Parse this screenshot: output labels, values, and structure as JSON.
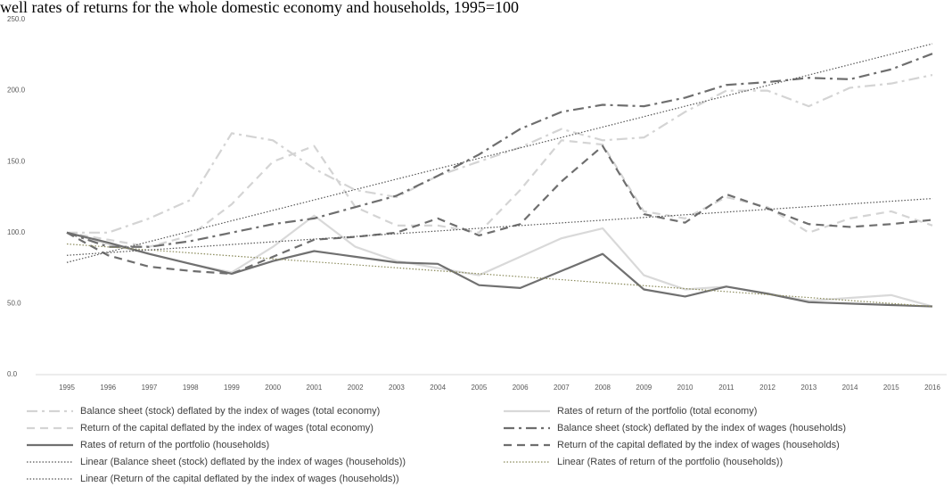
{
  "chart_data": {
    "type": "line",
    "title": "well rates of returns for the whole domestic economy and households, 1995=100",
    "categories": [
      "1995",
      "1996",
      "1997",
      "1998",
      "1999",
      "2000",
      "2001",
      "2002",
      "2003",
      "2004",
      "2005",
      "2006",
      "2007",
      "2008",
      "2009",
      "2010",
      "2011",
      "2012",
      "2013",
      "2014",
      "2015",
      "2016"
    ],
    "ylim": [
      0,
      250
    ],
    "yticks": [
      {
        "value": 0,
        "label": "0.0"
      },
      {
        "value": 50,
        "label": "50.0"
      },
      {
        "value": 100,
        "label": "100.0"
      },
      {
        "value": 150,
        "label": "150.0"
      },
      {
        "value": 200,
        "label": "200.0"
      },
      {
        "value": 250,
        "label": "250.0"
      }
    ],
    "grid": false,
    "series": [
      {
        "name": "Balance sheet (stock) deflated by the index of wages (total economy)",
        "color": "#d4d4d4",
        "style": "dash-dot",
        "values": [
          100,
          100,
          110,
          123,
          170,
          165,
          145,
          130,
          125,
          140,
          150,
          160,
          173,
          165,
          167,
          185,
          200,
          200,
          189,
          202,
          205,
          211
        ]
      },
      {
        "name": "Rates of return of the portfolio (total economy)",
        "color": "#d9d9d9",
        "style": "solid",
        "values": [
          100,
          92,
          85,
          78,
          72,
          90,
          112,
          90,
          80,
          75,
          70,
          83,
          96,
          103,
          70,
          60,
          62,
          57,
          52,
          54,
          56,
          48
        ]
      },
      {
        "name": "Return of the capital deflated by the index of wages (total economy)",
        "color": "#d4d4d4",
        "style": "dashed",
        "values": [
          100,
          95,
          90,
          98,
          120,
          150,
          161,
          118,
          105,
          105,
          100,
          130,
          165,
          162,
          115,
          110,
          125,
          118,
          100,
          110,
          115,
          105
        ]
      },
      {
        "name": "Balance sheet (stock) deflated by the index of wages (households)",
        "color": "#6e6e6e",
        "style": "dash-dot",
        "values": [
          100,
          90,
          90,
          94,
          100,
          106,
          110,
          118,
          126,
          140,
          155,
          173,
          185,
          190,
          189,
          195,
          204,
          206,
          209,
          208,
          215,
          226
        ]
      },
      {
        "name": "Rates of return of the portfolio (households)",
        "color": "#707070",
        "style": "solid",
        "values": [
          100,
          93,
          85,
          78,
          71,
          80,
          87,
          83,
          79,
          78,
          63,
          61,
          73,
          85,
          60,
          55,
          62,
          57,
          51,
          50,
          49,
          48
        ]
      },
      {
        "name": "Return of the capital deflated by the index of wages (households)",
        "color": "#6e6e6e",
        "style": "dashed",
        "values": [
          100,
          84,
          76,
          73,
          71,
          83,
          95,
          97,
          100,
          110,
          98,
          106,
          136,
          161,
          113,
          107,
          127,
          117,
          106,
          104,
          106,
          109
        ]
      },
      {
        "name": "Linear (Balance sheet (stock) deflated by the index of wages (households))",
        "color": "#555555",
        "style": "dotted",
        "x": [
          "1995",
          "2016"
        ],
        "values": [
          79,
          233
        ]
      },
      {
        "name": "Linear (Rates of return of the portfolio (households))",
        "color": "#8a8a5a",
        "style": "dotted",
        "x": [
          "1995",
          "2016"
        ],
        "values": [
          92,
          48
        ]
      },
      {
        "name": "Linear (Return of the capital deflated by the index of wages (households))",
        "color": "#555555",
        "style": "dotted",
        "x": [
          "1995",
          "2016"
        ],
        "values": [
          84,
          124
        ]
      }
    ]
  }
}
